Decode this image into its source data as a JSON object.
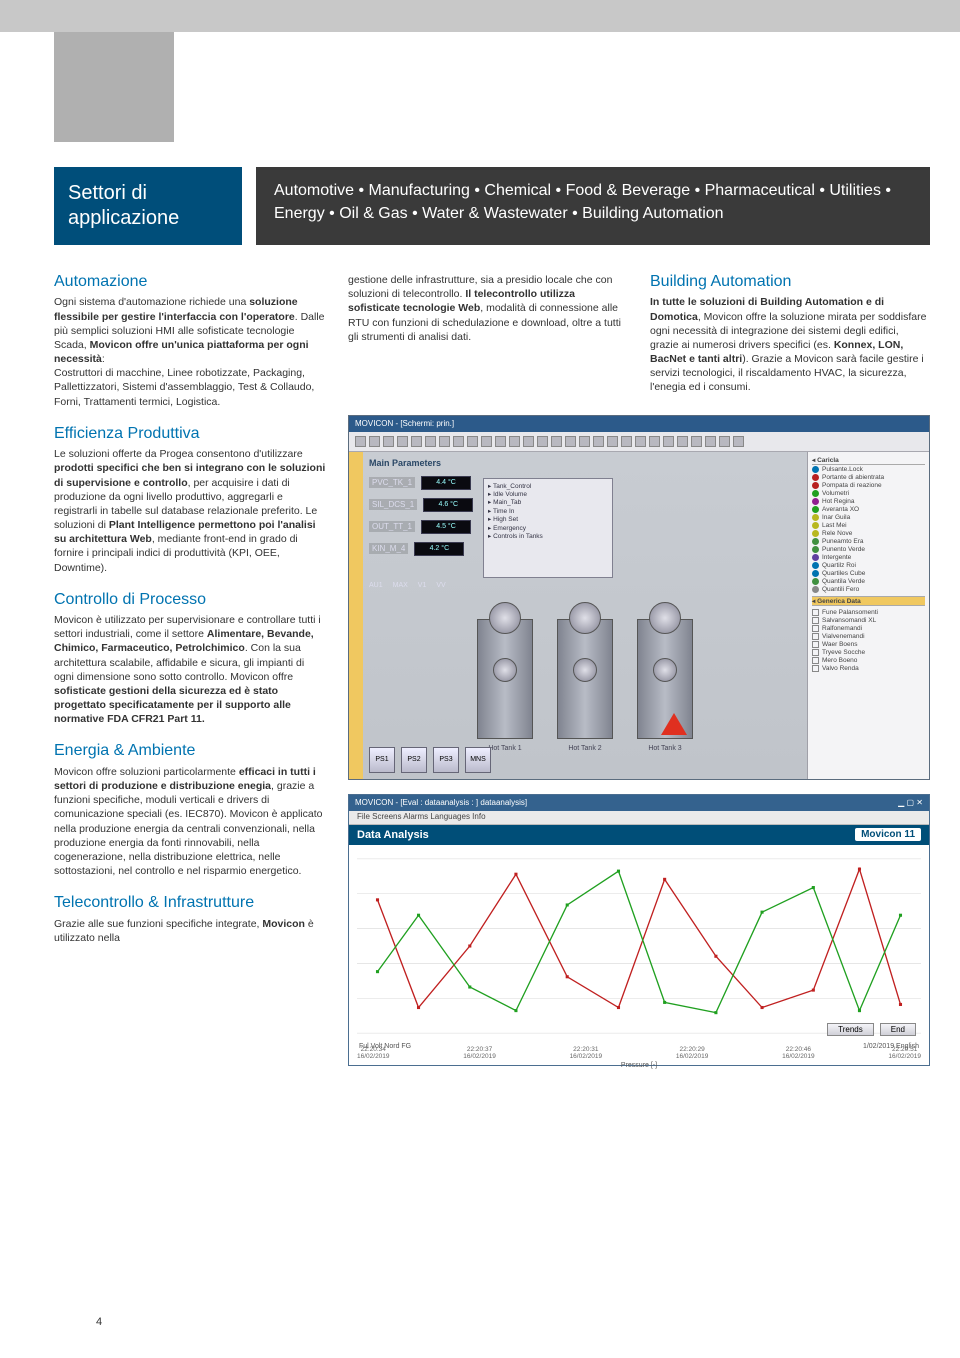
{
  "header": {
    "title_line1": "Settori di",
    "title_line2": "applicazione",
    "subtitle": "Automotive • Manufacturing • Chemical • Food & Beverage • Pharmaceutical • Utilities • Energy • Oil & Gas • Water & Wastewater • Building Automation"
  },
  "columns": {
    "left": {
      "sections": [
        {
          "head": "Automazione",
          "body": "Ogni sistema d'automazione richiede una <b>soluzione flessibile per gestire l'interfaccia con l'operatore</b>. Dalle più semplici soluzioni HMI alle sofisticate tecnologie Scada, <b>Movicon offre un'unica piattaforma per ogni necessità</b>:\nCostruttori di macchine, Linee robotizzate, Packaging, Pallettizzatori, Sistemi d'assemblaggio, Test & Collaudo, Forni, Trattamenti termici, Logistica."
        },
        {
          "head": "Efficienza Produttiva",
          "body": "Le soluzioni offerte da Progea consentono d'utilizzare <b>prodotti specifici che ben si integrano con le soluzioni di supervisione e controllo</b>, per acquisire i dati di produzione da ogni livello produttivo, aggregarli e registrarli in tabelle sul database relazionale preferito. Le soluzioni di <b>Plant Intelligence permettono poi l'analisi su architettura Web</b>, mediante front-end in grado di fornire i principali indici di produttività (KPI, OEE, Downtime)."
        },
        {
          "head": "Controllo di Processo",
          "body": "Movicon è utilizzato per supervisionare e controllare tutti i settori industriali, come il settore <b>Alimentare, Bevande, Chimico, Farmaceutico, Petrolchimico</b>. Con la sua architettura scalabile, affidabile e sicura, gli impianti di ogni dimensione sono sotto controllo. Movicon offre <b>sofisticate gestioni della sicurezza ed è stato progettato specificatamente per il supporto alle normative FDA CFR21 Part 11.</b>"
        },
        {
          "head": "Energia & Ambiente",
          "body": "Movicon offre soluzioni particolarmente <b>efficaci in tutti i settori di produzione e distribuzione enegia</b>, grazie a funzioni specifiche, moduli verticali e drivers di comunicazione speciali (es. IEC870). Movicon è applicato nella produzione energia da centrali convenzionali, nella produzione energia da fonti rinnovabili, nella cogenerazione, nella distribuzione elettrica, nelle sottostazioni, nel controllo e nel risparmio energetico."
        },
        {
          "head": "Telecontrollo & Infrastrutture",
          "body": "Grazie alle sue funzioni specifiche integrate, <b>Movicon</b> è utilizzato nella"
        }
      ]
    },
    "mid": {
      "body": "gestione delle infrastrutture, sia a presidio locale che con soluzioni di telecontrollo. <b>Il telecontrollo utilizza sofisticate tecnologie Web</b>, modalità di connessione alle RTU con funzioni di schedulazione e download, oltre a tutti gli strumenti di analisi dati."
    },
    "right": {
      "head": "Building Automation",
      "body": "<b>In tutte le soluzioni di Building Automation e di Domotica</b>, Movicon offre la soluzione mirata per soddisfare ogni necessità di integrazione dei sistemi degli edifici, grazie ai numerosi drivers specifici (es. <b>Konnex, LON, BacNet e tanti altri</b>). Grazie a Movicon sarà facile gestire i servizi tecnologici, il riscaldamento HVAC, la sicurezza, l'enegia ed i consumi."
    }
  },
  "screenshot": {
    "title": "MOVICON - [Schermi: prin.]",
    "main_title": "Main Parameters",
    "info_lines": [
      "Tank_Control",
      "Idle Volume",
      "Main_Tab",
      "Time In",
      "High Set",
      "Emergency",
      "Controls in Tanks"
    ],
    "params": [
      {
        "label": "PVC_TK_1",
        "value": "4.4 °C"
      },
      {
        "label": "SIL_DCS_1",
        "value": "4.6 °C"
      },
      {
        "label": "OUT_TT_1",
        "value": "4.5 °C"
      },
      {
        "label": "KIN_M_4",
        "value": "4.2 °C"
      }
    ],
    "hud": [
      "AU1",
      "MAX",
      "V1",
      "VV"
    ],
    "buttons": [
      "PS1",
      "PS2",
      "PS3",
      "MNS"
    ],
    "tanks": [
      "Hot Tank 1",
      "Hot Tank 2",
      "Hot Tank 3"
    ],
    "side_items": [
      {
        "c": "#0073b0",
        "t": "Pulsante.Lock"
      },
      {
        "c": "#b82020",
        "t": "Portante di abientrata"
      },
      {
        "c": "#b82020",
        "t": "Pompata di reazione"
      },
      {
        "c": "#20a020",
        "t": "Volumetri"
      },
      {
        "c": "#902090",
        "t": "Hot Regina"
      },
      {
        "c": "#20a020",
        "t": "Averanta XO"
      },
      {
        "c": "#b8b820",
        "t": "Inar Guila"
      },
      {
        "c": "#b8b820",
        "t": "Last Mei"
      },
      {
        "c": "#b8b820",
        "t": "Rele Nove"
      },
      {
        "c": "#409040",
        "t": "Puneamto Era"
      },
      {
        "c": "#409040",
        "t": "Punento Verde"
      },
      {
        "c": "#6040a0",
        "t": "Intergente"
      },
      {
        "c": "#0073b0",
        "t": "Quartilz Roi"
      },
      {
        "c": "#0073b0",
        "t": "Quartiles Cube"
      },
      {
        "c": "#409040",
        "t": "Quantila Verde"
      },
      {
        "c": "#888888",
        "t": "Quantili Fero"
      }
    ],
    "side_lower": [
      "Fune Palansomenti",
      "Salvansomandi XL",
      "Ralfonemandi",
      "Vialvenemandi",
      "Waer Boens",
      "Tryeve Socche",
      "Mero Boeno",
      "Valvo Renda"
    ]
  },
  "chart": {
    "title": "MOVICON - [Eval : dataanalysis : ] dataanalysis]",
    "menu": "File   Screens   Alarms   Languages   Info",
    "bar_title": "Data Analysis",
    "logo": "Movicon 11",
    "xticks": [
      "22:20:34\\n16/02/2019",
      "22:20:37\\n16/02/2019",
      "22:20:31\\n16/02/2019",
      "22:20:29\\n16/02/2019",
      "22:20:46\\n16/02/2019",
      "22:20:51\\n16/02/2019"
    ],
    "xlabel": "Pressure [-]",
    "series": [
      {
        "color": "#c02020",
        "points": [
          [
            20,
            40
          ],
          [
            60,
            145
          ],
          [
            110,
            85
          ],
          [
            155,
            15
          ],
          [
            205,
            115
          ],
          [
            255,
            145
          ],
          [
            300,
            20
          ],
          [
            350,
            95
          ],
          [
            395,
            145
          ],
          [
            445,
            128
          ],
          [
            490,
            10
          ],
          [
            530,
            142
          ]
        ]
      },
      {
        "color": "#20a020",
        "points": [
          [
            20,
            110
          ],
          [
            60,
            55
          ],
          [
            110,
            125
          ],
          [
            155,
            148
          ],
          [
            205,
            45
          ],
          [
            255,
            12
          ],
          [
            300,
            140
          ],
          [
            350,
            150
          ],
          [
            395,
            52
          ],
          [
            445,
            28
          ],
          [
            490,
            148
          ],
          [
            530,
            55
          ]
        ]
      }
    ],
    "buttons": [
      "Trends",
      "End"
    ],
    "footer_left": "Ful Volt Nord FG",
    "footer_right": "1/02/2019    English"
  },
  "page_number": "4"
}
